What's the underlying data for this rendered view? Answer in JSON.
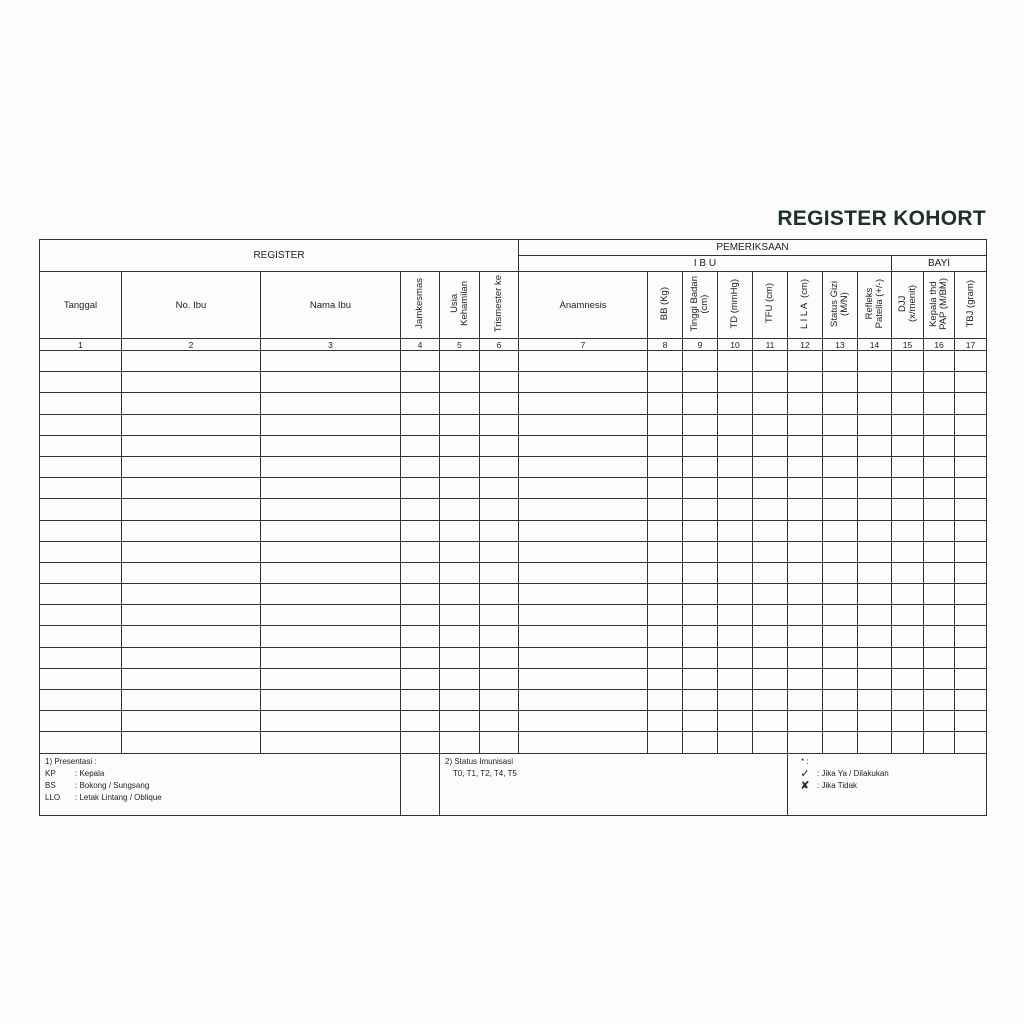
{
  "title": "REGISTER KOHORT",
  "header": {
    "register": "REGISTER",
    "pemeriksaan": "PEMERIKSAAN",
    "ibu": "I B U",
    "bayi": "BAYI"
  },
  "columns": [
    {
      "label": "Tanggal",
      "num": "1",
      "vertical": false
    },
    {
      "label": "No. Ibu",
      "num": "2",
      "vertical": false
    },
    {
      "label": "Nama Ibu",
      "num": "3",
      "vertical": false
    },
    {
      "label": "Jamkesmas",
      "num": "4",
      "vertical": true
    },
    {
      "label": "Usia\nKehamilan",
      "num": "5",
      "vertical": true
    },
    {
      "label": "Trismester ke",
      "num": "6",
      "vertical": true
    },
    {
      "label": "Anamnesis",
      "num": "7",
      "vertical": false
    },
    {
      "label": "BB (Kg)",
      "num": "8",
      "vertical": true
    },
    {
      "label": "Tinggi Badan\n(cm)",
      "num": "9",
      "vertical": true
    },
    {
      "label": "TD (mmHg)",
      "num": "10",
      "vertical": true
    },
    {
      "label": "TFU (cm)",
      "num": "11",
      "vertical": true
    },
    {
      "label": "L I L A  (cm)",
      "num": "12",
      "vertical": true
    },
    {
      "label": "Status Gizi\n(M/N)",
      "num": "13",
      "vertical": true
    },
    {
      "label": "Refleks\nPatella (+/-)",
      "num": "14",
      "vertical": true
    },
    {
      "label": "DJJ\n(x/menit)",
      "num": "15",
      "vertical": true
    },
    {
      "label": "Kepala thd\nPAP (M/BM)",
      "num": "16",
      "vertical": true
    },
    {
      "label": "TBJ (gram)",
      "num": "17",
      "vertical": true
    }
  ],
  "footer": {
    "presentasi": {
      "title": "1) Presentasi :",
      "items": [
        {
          "code": "KP",
          "desc": ": Kepala"
        },
        {
          "code": "BS",
          "desc": ": Bokong / Sungsang"
        },
        {
          "code": "LLO",
          "desc": ": Letak Lintang / Oblique"
        }
      ]
    },
    "imunisasi": {
      "title": "2) Status Imunisasi",
      "values": "T0, T1, T2, T4, T5"
    },
    "legend": {
      "title": "* :",
      "items": [
        {
          "icon": "check-icon",
          "glyph": "✓",
          "desc": ": Jika Ya / Dilakukan"
        },
        {
          "icon": "cross-icon",
          "glyph": "✘",
          "desc": ": Jika Tidak"
        }
      ]
    }
  }
}
